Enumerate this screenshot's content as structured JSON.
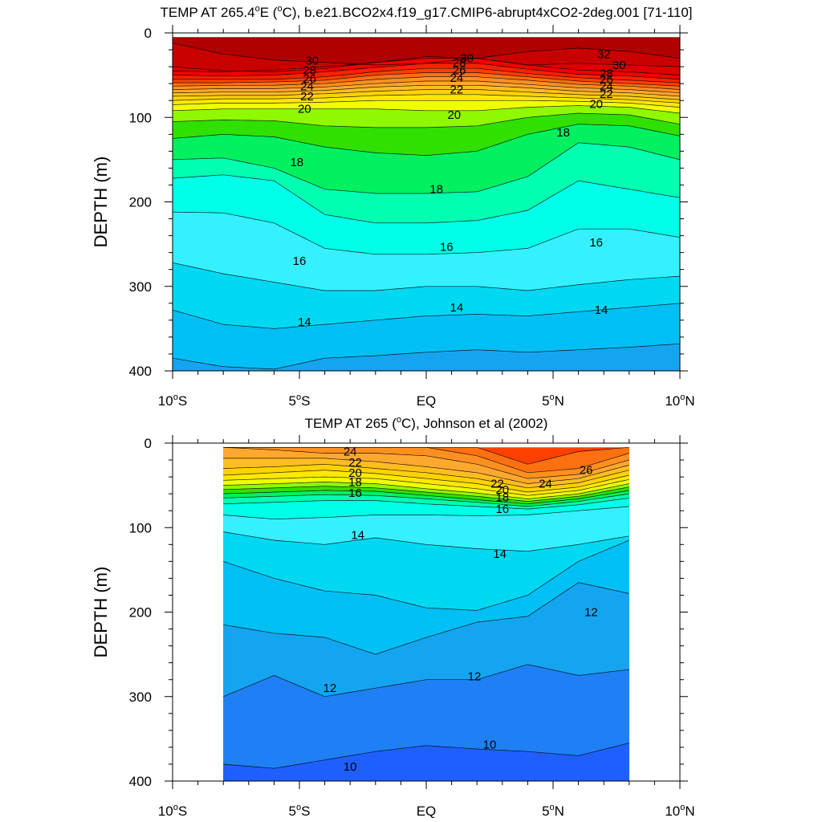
{
  "chart_data": [
    {
      "type": "contour",
      "title": "TEMP AT 265.4°E (°C), b.e21.BCO2x4.f19_g17.CMIP6-abrupt4xCO2-2deg.001 [71-110]",
      "title_parts": {
        "pre": "TEMP AT 265.4",
        "sup": "o",
        "post": "E (",
        "sup2": "o",
        "post2": "C), b.e21.BCO2x4.f19_g17.CMIP6-abrupt4xCO2-2deg.001 [71-110]"
      },
      "xlabel": "",
      "ylabel": "DEPTH (m)",
      "x_ticks": [
        {
          "value": -10,
          "label": "10°S"
        },
        {
          "value": -5,
          "label": "5°S"
        },
        {
          "value": 0,
          "label": "EQ"
        },
        {
          "value": 5,
          "label": "5°N"
        },
        {
          "value": 10,
          "label": "10°N"
        }
      ],
      "y_ticks": [
        0,
        100,
        200,
        300,
        400
      ],
      "xlim": [
        -10,
        10
      ],
      "ylim": [
        400,
        0
      ],
      "data_xrange": [
        -10,
        10
      ],
      "data_yrange": [
        5,
        400
      ],
      "x_nodes": [
        -10,
        -8,
        -6,
        -4,
        -2,
        0,
        2,
        4,
        6,
        8,
        10
      ],
      "contour_depths": [
        {
          "level": 32,
          "d": [
            12,
            25,
            32,
            35,
            38,
            36,
            30,
            22,
            18,
            22,
            30
          ]
        },
        {
          "level": 31,
          "d": [
            40,
            45,
            46,
            42,
            35,
            28,
            30,
            38,
            36,
            38,
            40
          ]
        },
        {
          "level": 30,
          "d": [
            45,
            46,
            44,
            40,
            35,
            30,
            30,
            38,
            44,
            46,
            50
          ]
        },
        {
          "level": 29,
          "d": [
            50,
            51,
            50,
            46,
            41,
            36,
            36,
            43,
            49,
            51,
            55
          ]
        },
        {
          "level": 28,
          "d": [
            55,
            55,
            55,
            52,
            46,
            42,
            42,
            48,
            53,
            56,
            59
          ]
        },
        {
          "level": 27,
          "d": [
            59,
            59,
            58,
            56,
            50,
            47,
            47,
            52,
            57,
            60,
            63
          ]
        },
        {
          "level": 26,
          "d": [
            63,
            62,
            62,
            60,
            55,
            52,
            52,
            56,
            61,
            63,
            67
          ]
        },
        {
          "level": 25,
          "d": [
            67,
            66,
            66,
            64,
            60,
            57,
            57,
            61,
            65,
            67,
            71
          ]
        },
        {
          "level": 24,
          "d": [
            71,
            70,
            70,
            68,
            64,
            62,
            62,
            65,
            69,
            71,
            75
          ]
        },
        {
          "level": 23,
          "d": [
            75,
            74,
            74,
            72,
            69,
            67,
            67,
            70,
            73,
            75,
            79
          ]
        },
        {
          "level": 22,
          "d": [
            80,
            78,
            78,
            77,
            74,
            73,
            73,
            75,
            77,
            79,
            83
          ]
        },
        {
          "level": 21,
          "d": [
            85,
            83,
            83,
            82,
            80,
            80,
            80,
            80,
            81,
            83,
            88
          ]
        },
        {
          "level": 20,
          "d": [
            92,
            90,
            90,
            90,
            90,
            92,
            92,
            88,
            86,
            88,
            95
          ]
        },
        {
          "level": 19,
          "d": [
            105,
            103,
            104,
            110,
            112,
            112,
            110,
            100,
            95,
            97,
            108
          ]
        },
        {
          "level": 18,
          "d": [
            125,
            120,
            123,
            135,
            142,
            145,
            140,
            120,
            108,
            110,
            122
          ]
        },
        {
          "level": 17,
          "d": [
            150,
            148,
            160,
            185,
            190,
            190,
            188,
            170,
            130,
            135,
            150
          ]
        },
        {
          "level": 16,
          "d": [
            172,
            168,
            175,
            215,
            225,
            225,
            222,
            210,
            175,
            185,
            195
          ]
        },
        {
          "level": 15,
          "d": [
            212,
            213,
            225,
            255,
            262,
            262,
            260,
            255,
            232,
            232,
            242
          ]
        },
        {
          "level": 14,
          "d": [
            272,
            285,
            295,
            305,
            305,
            300,
            300,
            305,
            298,
            292,
            288
          ]
        },
        {
          "level": 13,
          "d": [
            328,
            345,
            350,
            345,
            340,
            335,
            333,
            335,
            330,
            325,
            320
          ]
        },
        {
          "level": 12,
          "d": [
            385,
            395,
            398,
            385,
            382,
            378,
            375,
            378,
            375,
            372,
            368
          ]
        }
      ],
      "contour_labels": [
        {
          "text": "30",
          "x": -4.5,
          "y": 33
        },
        {
          "text": "28",
          "x": -4.6,
          "y": 44
        },
        {
          "text": "26",
          "x": -4.6,
          "y": 54
        },
        {
          "text": "24",
          "x": -4.7,
          "y": 63
        },
        {
          "text": "22",
          "x": -4.7,
          "y": 75
        },
        {
          "text": "20",
          "x": -4.8,
          "y": 90
        },
        {
          "text": "18",
          "x": -5.1,
          "y": 153
        },
        {
          "text": "16",
          "x": -5.0,
          "y": 270
        },
        {
          "text": "14",
          "x": -4.8,
          "y": 342
        },
        {
          "text": "30",
          "x": 1.6,
          "y": 30
        },
        {
          "text": "28",
          "x": 1.3,
          "y": 35
        },
        {
          "text": "26",
          "x": 1.3,
          "y": 44
        },
        {
          "text": "24",
          "x": 1.2,
          "y": 53
        },
        {
          "text": "22",
          "x": 1.2,
          "y": 67
        },
        {
          "text": "20",
          "x": 1.1,
          "y": 97
        },
        {
          "text": "18",
          "x": 0.4,
          "y": 185
        },
        {
          "text": "16",
          "x": 0.8,
          "y": 253
        },
        {
          "text": "14",
          "x": 1.2,
          "y": 325
        },
        {
          "text": "32",
          "x": 7.0,
          "y": 25
        },
        {
          "text": "30",
          "x": 7.6,
          "y": 38
        },
        {
          "text": "28",
          "x": 7.1,
          "y": 48
        },
        {
          "text": "26",
          "x": 7.1,
          "y": 55
        },
        {
          "text": "24",
          "x": 7.1,
          "y": 63
        },
        {
          "text": "22",
          "x": 7.1,
          "y": 72
        },
        {
          "text": "20",
          "x": 6.7,
          "y": 84
        },
        {
          "text": "18",
          "x": 5.4,
          "y": 118
        },
        {
          "text": "16",
          "x": 6.7,
          "y": 248
        },
        {
          "text": "14",
          "x": 6.9,
          "y": 328
        }
      ]
    },
    {
      "type": "contour",
      "title": "TEMP AT 265 (°C), Johnson et al (2002)",
      "title_parts": {
        "pre": "TEMP AT 265 (",
        "sup": "o",
        "post": "C), Johnson et al (2002)",
        "sup2": "",
        "post2": ""
      },
      "xlabel": "",
      "ylabel": "DEPTH (m)",
      "x_ticks": [
        {
          "value": -10,
          "label": "10°S"
        },
        {
          "value": -5,
          "label": "5°S"
        },
        {
          "value": 0,
          "label": "EQ"
        },
        {
          "value": 5,
          "label": "5°N"
        },
        {
          "value": 10,
          "label": "10°N"
        }
      ],
      "y_ticks": [
        0,
        100,
        200,
        300,
        400
      ],
      "xlim": [
        -10,
        10
      ],
      "ylim": [
        400,
        0
      ],
      "data_xrange": [
        -8,
        8
      ],
      "data_yrange": [
        5,
        400
      ],
      "x_nodes": [
        -8,
        -6,
        -4,
        -2,
        0,
        2,
        4,
        6,
        8
      ],
      "contour_depths": [
        {
          "level": 27,
          "d": [
            5,
            5,
            5,
            5,
            5,
            5,
            25,
            10,
            5
          ]
        },
        {
          "level": 26,
          "d": [
            5,
            5,
            5,
            5,
            5,
            15,
            35,
            30,
            12
          ]
        },
        {
          "level": 25,
          "d": [
            5,
            8,
            12,
            12,
            15,
            25,
            42,
            37,
            20
          ]
        },
        {
          "level": 24,
          "d": [
            18,
            18,
            18,
            22,
            28,
            35,
            48,
            42,
            26
          ]
        },
        {
          "level": 23,
          "d": [
            30,
            28,
            25,
            30,
            35,
            42,
            53,
            47,
            32
          ]
        },
        {
          "level": 22,
          "d": [
            38,
            35,
            32,
            36,
            42,
            48,
            58,
            52,
            38
          ]
        },
        {
          "level": 21,
          "d": [
            44,
            42,
            40,
            42,
            48,
            54,
            62,
            56,
            43
          ]
        },
        {
          "level": 20,
          "d": [
            50,
            48,
            46,
            48,
            54,
            59,
            66,
            60,
            48
          ]
        },
        {
          "level": 19,
          "d": [
            55,
            53,
            51,
            53,
            58,
            63,
            69,
            63,
            52
          ]
        },
        {
          "level": 18,
          "d": [
            60,
            58,
            56,
            57,
            62,
            67,
            72,
            66,
            56
          ]
        },
        {
          "level": 17,
          "d": [
            65,
            63,
            61,
            62,
            66,
            70,
            75,
            69,
            60
          ]
        },
        {
          "level": 16,
          "d": [
            72,
            70,
            68,
            68,
            72,
            75,
            78,
            73,
            65
          ]
        },
        {
          "level": 15,
          "d": [
            85,
            90,
            88,
            85,
            85,
            86,
            85,
            80,
            75
          ]
        },
        {
          "level": 14,
          "d": [
            105,
            115,
            120,
            112,
            120,
            125,
            128,
            120,
            110
          ]
        },
        {
          "level": 13,
          "d": [
            140,
            160,
            175,
            180,
            195,
            198,
            180,
            140,
            115
          ]
        },
        {
          "level": 12,
          "d": [
            215,
            225,
            230,
            250,
            230,
            212,
            205,
            165,
            178
          ]
        },
        {
          "level": 11,
          "d": [
            300,
            275,
            300,
            290,
            280,
            280,
            262,
            275,
            268
          ]
        },
        {
          "level": 10,
          "d": [
            380,
            385,
            375,
            365,
            358,
            362,
            365,
            370,
            355
          ]
        }
      ],
      "contour_labels": [
        {
          "text": "24",
          "x": -3.0,
          "y": 10
        },
        {
          "text": "22",
          "x": -2.8,
          "y": 23
        },
        {
          "text": "20",
          "x": -2.8,
          "y": 35
        },
        {
          "text": "18",
          "x": -2.8,
          "y": 46
        },
        {
          "text": "16",
          "x": -2.8,
          "y": 59
        },
        {
          "text": "14",
          "x": -2.7,
          "y": 109
        },
        {
          "text": "12",
          "x": -3.8,
          "y": 290
        },
        {
          "text": "10",
          "x": -3.0,
          "y": 383
        },
        {
          "text": "22",
          "x": 2.8,
          "y": 48
        },
        {
          "text": "20",
          "x": 3.0,
          "y": 55
        },
        {
          "text": "18",
          "x": 3.0,
          "y": 64
        },
        {
          "text": "16",
          "x": 3.0,
          "y": 78
        },
        {
          "text": "14",
          "x": 2.9,
          "y": 131
        },
        {
          "text": "12",
          "x": 1.9,
          "y": 276
        },
        {
          "text": "10",
          "x": 2.5,
          "y": 357
        },
        {
          "text": "24",
          "x": 4.7,
          "y": 48
        },
        {
          "text": "26",
          "x": 6.3,
          "y": 32
        },
        {
          "text": "12",
          "x": 6.5,
          "y": 200
        }
      ]
    }
  ],
  "colors": {
    "palette": [
      {
        "t": 8,
        "hex": "#1f3fff"
      },
      {
        "t": 9,
        "hex": "#1f5fff"
      },
      {
        "t": 10,
        "hex": "#1f80f5"
      },
      {
        "t": 11,
        "hex": "#15a5f0"
      },
      {
        "t": 12,
        "hex": "#00bff5"
      },
      {
        "t": 13,
        "hex": "#00d8f2"
      },
      {
        "t": 14,
        "hex": "#35f0ff"
      },
      {
        "t": 15,
        "hex": "#00ffe8"
      },
      {
        "t": 16,
        "hex": "#00ffb0"
      },
      {
        "t": 17,
        "hex": "#00f060"
      },
      {
        "t": 18,
        "hex": "#30e000"
      },
      {
        "t": 19,
        "hex": "#90f800"
      },
      {
        "t": 20,
        "hex": "#f0ff00"
      },
      {
        "t": 21,
        "hex": "#ffe800"
      },
      {
        "t": 22,
        "hex": "#ffd200"
      },
      {
        "t": 23,
        "hex": "#ffbe20"
      },
      {
        "t": 24,
        "hex": "#ffa830"
      },
      {
        "t": 25,
        "hex": "#ff9020"
      },
      {
        "t": 26,
        "hex": "#ff7010"
      },
      {
        "t": 27,
        "hex": "#ff4000"
      },
      {
        "t": 28,
        "hex": "#ff2000"
      },
      {
        "t": 29,
        "hex": "#f00000"
      },
      {
        "t": 30,
        "hex": "#dd0000"
      },
      {
        "t": 31,
        "hex": "#c80000"
      },
      {
        "t": 32,
        "hex": "#b00000"
      },
      {
        "t": 33,
        "hex": "#a00000"
      }
    ]
  }
}
